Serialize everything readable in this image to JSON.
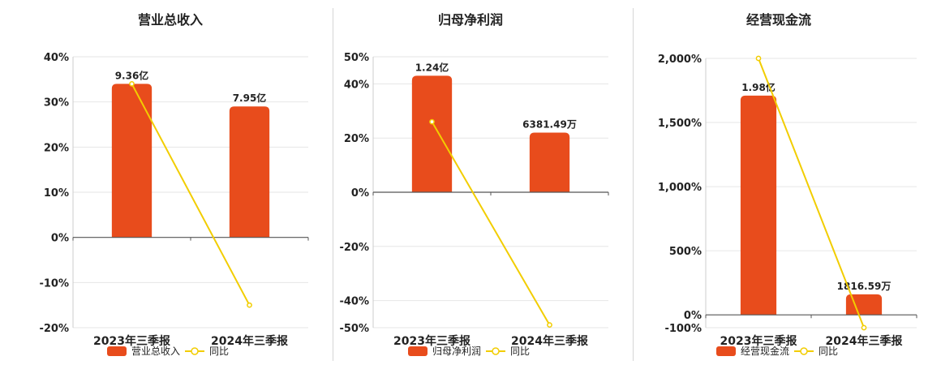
{
  "colors": {
    "bar": "#e84c1c",
    "line": "#f2cd00",
    "grid": "#e6e6e6",
    "axis": "#555555"
  },
  "legend": {
    "yoy_label": "同比"
  },
  "chart_data": [
    {
      "type": "bar",
      "title": "营业总收入",
      "categories": [
        "2023年三季报",
        "2024年三季报"
      ],
      "series": [
        {
          "name": "营业总收入",
          "type": "bar",
          "values": [
            34,
            29
          ],
          "labels": [
            "9.36亿",
            "7.95亿"
          ]
        },
        {
          "name": "同比",
          "type": "line",
          "values": [
            34,
            -15
          ]
        }
      ],
      "ylim": [
        -20,
        40
      ],
      "yticks": [
        -20,
        -10,
        0,
        10,
        20,
        30,
        40
      ],
      "ytick_labels": [
        "-20%",
        "-10%",
        "0%",
        "10%",
        "20%",
        "30%",
        "40%"
      ],
      "legend_position": "bottom"
    },
    {
      "type": "bar",
      "title": "归母净利润",
      "categories": [
        "2023年三季报",
        "2024年三季报"
      ],
      "series": [
        {
          "name": "归母净利润",
          "type": "bar",
          "values": [
            43,
            22
          ],
          "labels": [
            "1.24亿",
            "6381.49万"
          ]
        },
        {
          "name": "同比",
          "type": "line",
          "values": [
            26,
            -49
          ]
        }
      ],
      "ylim": [
        -50,
        50
      ],
      "yticks": [
        -50,
        -40,
        -20,
        0,
        20,
        40,
        50
      ],
      "ytick_labels": [
        "-50%",
        "-40%",
        "-20%",
        "0%",
        "20%",
        "40%",
        "50%"
      ],
      "legend_position": "bottom"
    },
    {
      "type": "bar",
      "title": "经营现金流",
      "categories": [
        "2023年三季报",
        "2024年三季报"
      ],
      "series": [
        {
          "name": "经营现金流",
          "type": "bar",
          "values": [
            1710,
            160
          ],
          "labels": [
            "1.98亿",
            "1816.59万"
          ]
        },
        {
          "name": "同比",
          "type": "line",
          "values": [
            2000,
            -100
          ]
        }
      ],
      "ylim": [
        -100,
        2000
      ],
      "yticks": [
        -100,
        0,
        500,
        1000,
        1500,
        2000
      ],
      "ytick_labels": [
        "-100%",
        "0%",
        "500%",
        "1,000%",
        "1,500%",
        "2,000%"
      ],
      "legend_position": "bottom"
    }
  ]
}
